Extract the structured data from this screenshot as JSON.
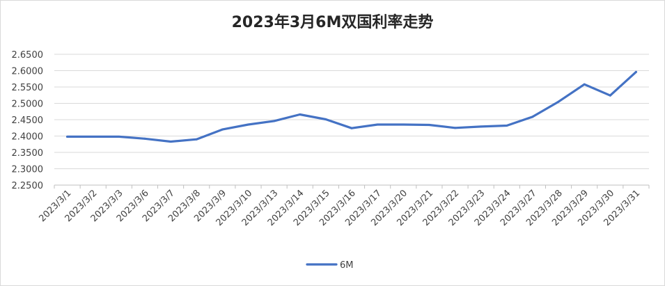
{
  "chart_data": {
    "type": "line",
    "title": "2023年3月6M双国利率走势",
    "xlabel": "",
    "ylabel": "",
    "categories": [
      "2023/3/1",
      "2023/3/2",
      "2023/3/3",
      "2023/3/6",
      "2023/3/7",
      "2023/3/8",
      "2023/3/9",
      "2023/3/10",
      "2023/3/13",
      "2023/3/14",
      "2023/3/15",
      "2023/3/16",
      "2023/3/17",
      "2023/3/20",
      "2023/3/21",
      "2023/3/22",
      "2023/3/23",
      "2023/3/24",
      "2023/3/27",
      "2023/3/28",
      "2023/3/29",
      "2023/3/30",
      "2023/3/31"
    ],
    "series": [
      {
        "name": "6M",
        "color": "#4472c4",
        "values": [
          2.398,
          2.398,
          2.398,
          2.392,
          2.383,
          2.39,
          2.42,
          2.435,
          2.446,
          2.466,
          2.451,
          2.424,
          2.435,
          2.435,
          2.434,
          2.425,
          2.429,
          2.432,
          2.459,
          2.505,
          2.558,
          2.524,
          2.596
        ]
      }
    ],
    "ylim": [
      2.25,
      2.65
    ],
    "yticks": [
      "2.2500",
      "2.3000",
      "2.3500",
      "2.4000",
      "2.4500",
      "2.5000",
      "2.5500",
      "2.6000",
      "2.6500"
    ],
    "grid": true,
    "legend": "bottom"
  }
}
